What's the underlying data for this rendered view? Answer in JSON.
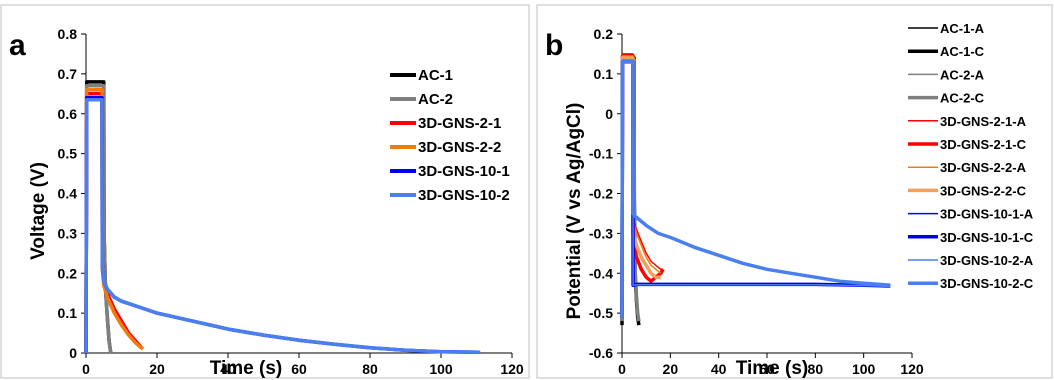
{
  "chart_data": [
    {
      "panel_label": "a",
      "type": "line",
      "xlabel": "Time (s)",
      "ylabel": "Voltage (V)",
      "xlim": [
        0,
        120
      ],
      "ylim": [
        0,
        0.8
      ],
      "xticks": [
        0,
        20,
        40,
        60,
        80,
        100,
        120
      ],
      "yticks": [
        0,
        0.1,
        0.2,
        0.3,
        0.4,
        0.5,
        0.6,
        0.7,
        0.8
      ],
      "ytick_labels": [
        "0",
        "0.1",
        "0.2",
        "0.3",
        "0.4",
        "0.5",
        "0.6",
        "0.7",
        "0.8"
      ],
      "grid": false,
      "legend_position": "right",
      "series": [
        {
          "name": "AC-1",
          "color": "#000000",
          "x": [
            0,
            0.2,
            5,
            5.1,
            5.5,
            6.0,
            6.5,
            7.0
          ],
          "y": [
            0,
            0.68,
            0.68,
            0.3,
            0.16,
            0.09,
            0.03,
            0
          ]
        },
        {
          "name": "AC-2",
          "color": "#7f7f7f",
          "x": [
            0,
            0.2,
            5,
            5.1,
            5.5,
            6.0,
            6.5,
            7.0
          ],
          "y": [
            0,
            0.67,
            0.67,
            0.3,
            0.16,
            0.09,
            0.03,
            0
          ]
        },
        {
          "name": "3D-GNS-2-1",
          "color": "#ff0000",
          "x": [
            0,
            0.2,
            4.5,
            4.6,
            5,
            6,
            7,
            8,
            10,
            12,
            14,
            16
          ],
          "y": [
            0,
            0.65,
            0.65,
            0.22,
            0.18,
            0.15,
            0.13,
            0.11,
            0.08,
            0.05,
            0.03,
            0.01
          ]
        },
        {
          "name": "3D-GNS-2-2",
          "color": "#f07c10",
          "x": [
            0,
            0.2,
            4.5,
            4.6,
            5,
            6,
            7,
            8,
            10,
            12,
            14,
            16
          ],
          "y": [
            0,
            0.66,
            0.66,
            0.21,
            0.17,
            0.14,
            0.12,
            0.1,
            0.07,
            0.045,
            0.025,
            0.01
          ]
        },
        {
          "name": "3D-GNS-10-1",
          "color": "#0000ee",
          "x": [
            0,
            0.2,
            4.5,
            4.6,
            5,
            6,
            8,
            10,
            15,
            20,
            30,
            40,
            50,
            60,
            70,
            80,
            90,
            100,
            111
          ],
          "y": [
            0,
            0.64,
            0.64,
            0.22,
            0.18,
            0.16,
            0.14,
            0.13,
            0.115,
            0.1,
            0.08,
            0.06,
            0.045,
            0.032,
            0.022,
            0.013,
            0.007,
            0.003,
            0.002
          ]
        },
        {
          "name": "3D-GNS-10-2",
          "color": "#4a7ff0",
          "x": [
            0,
            0.2,
            4.5,
            4.6,
            5,
            6,
            8,
            10,
            15,
            20,
            30,
            40,
            50,
            60,
            70,
            80,
            90,
            100,
            111
          ],
          "y": [
            0,
            0.635,
            0.635,
            0.22,
            0.18,
            0.16,
            0.14,
            0.13,
            0.115,
            0.1,
            0.08,
            0.06,
            0.045,
            0.032,
            0.022,
            0.013,
            0.007,
            0.003,
            0.002
          ]
        }
      ]
    },
    {
      "panel_label": "b",
      "type": "line",
      "xlabel": "Time (s)",
      "ylabel": "Potential (V vs Ag/AgCl)",
      "xlim": [
        0,
        120
      ],
      "ylim": [
        -0.6,
        0.2
      ],
      "xticks": [
        0,
        20,
        40,
        60,
        80,
        100,
        120
      ],
      "yticks": [
        -0.6,
        -0.5,
        -0.4,
        -0.3,
        -0.2,
        -0.1,
        0,
        0.1,
        0.2
      ],
      "ytick_labels": [
        "-0.6",
        "-0.5",
        "-0.4",
        "-0.3",
        "-0.2",
        "-0.1",
        "0",
        "0.1",
        "0.2"
      ],
      "grid": false,
      "legend_position": "right",
      "series": [
        {
          "name": "AC-1-A",
          "color": "#000000",
          "width": 1.5,
          "x": [
            0,
            0.2,
            5,
            5.1,
            5.5,
            6.0,
            6.5,
            7.0
          ],
          "y": [
            -0.52,
            0.145,
            0.145,
            -0.2,
            -0.4,
            -0.46,
            -0.5,
            -0.52
          ]
        },
        {
          "name": "AC-1-C",
          "color": "#000000",
          "width": 3.5,
          "x": [
            0,
            0.2,
            5,
            5.1,
            5.5,
            6.0,
            6.5,
            7.0
          ],
          "y": [
            -0.53,
            0.14,
            0.14,
            -0.21,
            -0.41,
            -0.47,
            -0.51,
            -0.53
          ]
        },
        {
          "name": "AC-2-A",
          "color": "#7f7f7f",
          "width": 1.5,
          "x": [
            0,
            0.2,
            5,
            5.1,
            5.5,
            6.0,
            6.5,
            7.0
          ],
          "y": [
            -0.51,
            0.14,
            0.14,
            -0.2,
            -0.4,
            -0.46,
            -0.49,
            -0.51
          ]
        },
        {
          "name": "AC-2-C",
          "color": "#7f7f7f",
          "width": 3.5,
          "x": [
            0,
            0.2,
            5,
            5.1,
            5.5,
            6.0,
            6.5,
            7.0
          ],
          "y": [
            -0.52,
            0.135,
            0.135,
            -0.21,
            -0.4,
            -0.46,
            -0.5,
            -0.52
          ]
        },
        {
          "name": "3D-GNS-2-1-A",
          "color": "#ff0000",
          "width": 1.5,
          "x": [
            0,
            0.2,
            4.5,
            4.6,
            5,
            6,
            8,
            10,
            12,
            14,
            16,
            17
          ],
          "y": [
            -0.5,
            0.15,
            0.15,
            -0.25,
            -0.27,
            -0.29,
            -0.32,
            -0.35,
            -0.37,
            -0.38,
            -0.39,
            -0.39
          ]
        },
        {
          "name": "3D-GNS-2-1-C",
          "color": "#ff0000",
          "width": 3.5,
          "x": [
            0,
            0.2,
            4.5,
            4.6,
            5,
            6,
            8,
            10,
            12,
            14,
            16,
            17
          ],
          "y": [
            -0.51,
            0.145,
            0.145,
            -0.3,
            -0.33,
            -0.36,
            -0.39,
            -0.41,
            -0.42,
            -0.41,
            -0.4,
            -0.39
          ]
        },
        {
          "name": "3D-GNS-2-2-A",
          "color": "#f07c10",
          "width": 1.5,
          "x": [
            0,
            0.2,
            4.5,
            4.6,
            5,
            6,
            8,
            10,
            12,
            14,
            16
          ],
          "y": [
            -0.5,
            0.145,
            0.145,
            -0.26,
            -0.28,
            -0.3,
            -0.33,
            -0.36,
            -0.38,
            -0.39,
            -0.4
          ]
        },
        {
          "name": "3D-GNS-2-2-C",
          "color": "#f5a05a",
          "width": 3.5,
          "x": [
            0,
            0.2,
            4.5,
            4.6,
            5,
            6,
            8,
            10,
            12,
            14,
            16
          ],
          "y": [
            -0.51,
            0.14,
            0.14,
            -0.29,
            -0.31,
            -0.33,
            -0.36,
            -0.38,
            -0.4,
            -0.41,
            -0.41
          ]
        },
        {
          "name": "3D-GNS-10-1-A",
          "color": "#0000ee",
          "width": 1.5,
          "x": [
            0,
            0.2,
            4.5,
            4.6,
            5,
            6,
            8,
            10,
            15,
            20,
            30,
            40,
            50,
            60,
            70,
            80,
            90,
            100,
            111
          ],
          "y": [
            -0.5,
            0.13,
            0.13,
            -0.25,
            -0.255,
            -0.26,
            -0.27,
            -0.28,
            -0.3,
            -0.31,
            -0.335,
            -0.355,
            -0.375,
            -0.39,
            -0.4,
            -0.41,
            -0.42,
            -0.425,
            -0.43
          ]
        },
        {
          "name": "3D-GNS-10-1-C",
          "color": "#0000ee",
          "width": 3.5,
          "x": [
            0,
            0.2,
            4.5,
            4.6,
            5,
            6,
            8,
            10,
            20,
            40,
            60,
            80,
            100,
            111
          ],
          "y": [
            -0.51,
            0.13,
            0.13,
            -0.43,
            -0.43,
            -0.428,
            -0.428,
            -0.428,
            -0.428,
            -0.428,
            -0.428,
            -0.428,
            -0.43,
            -0.432
          ]
        },
        {
          "name": "3D-GNS-10-2-A",
          "color": "#4a7ff0",
          "width": 1.5,
          "x": [
            0,
            0.2,
            4.5,
            4.6,
            5,
            6,
            8,
            10,
            20,
            40,
            60,
            80,
            100,
            111
          ],
          "y": [
            -0.5,
            0.135,
            0.135,
            -0.43,
            -0.43,
            -0.429,
            -0.429,
            -0.429,
            -0.429,
            -0.429,
            -0.429,
            -0.429,
            -0.431,
            -0.433
          ]
        },
        {
          "name": "3D-GNS-10-2-C",
          "color": "#4a7ff0",
          "width": 3.5,
          "x": [
            0,
            0.2,
            4.5,
            4.6,
            5,
            6,
            8,
            10,
            15,
            20,
            30,
            40,
            50,
            60,
            70,
            80,
            90,
            100,
            111
          ],
          "y": [
            -0.51,
            0.13,
            0.13,
            -0.25,
            -0.255,
            -0.26,
            -0.27,
            -0.28,
            -0.3,
            -0.31,
            -0.335,
            -0.355,
            -0.375,
            -0.39,
            -0.4,
            -0.41,
            -0.42,
            -0.425,
            -0.43
          ]
        }
      ]
    }
  ]
}
